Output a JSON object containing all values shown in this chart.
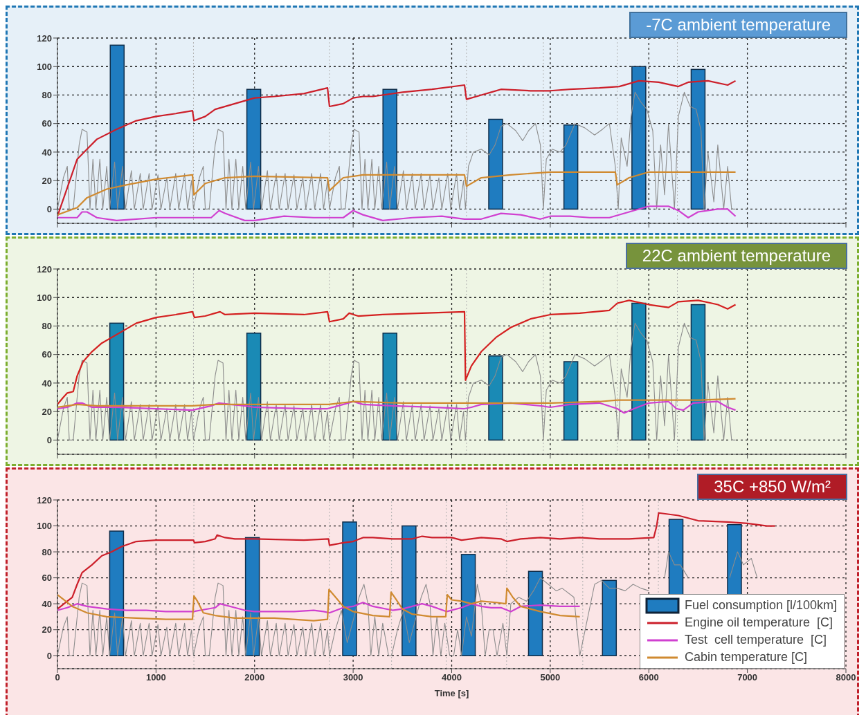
{
  "chart_data": [
    {
      "type": "bar",
      "title": "-7C ambient temperature",
      "xlim": [
        0,
        8000
      ],
      "xticks": [
        0,
        1000,
        2000,
        3000,
        4000,
        5000,
        6000,
        7000,
        8000
      ],
      "ylim": [
        -10,
        120
      ],
      "yticks": [
        0,
        20,
        40,
        60,
        80,
        100,
        120
      ],
      "grid": true,
      "tick_labels": "y",
      "ref_lines": [
        {
          "axis": "x",
          "value": 1380,
          "color": "#b0b0b0",
          "line_style": "dotted"
        },
        {
          "axis": "x",
          "value": 2760,
          "color": "#b0b0b0",
          "line_style": "dotted"
        },
        {
          "axis": "x",
          "value": 4150,
          "color": "#b0b0b0",
          "line_style": "dotted"
        },
        {
          "axis": "x",
          "value": 4930,
          "color": "#b0b0b0",
          "line_style": "dotted"
        },
        {
          "axis": "x",
          "value": 5680,
          "color": "#b0b0b0",
          "line_style": "dotted"
        },
        {
          "axis": "x",
          "value": 6290,
          "color": "#b0b0b0",
          "line_style": "dotted"
        }
      ],
      "series": [
        {
          "color": "#1f7cc0",
          "x": [
            606,
            1992,
            3373,
            4446,
            5209,
            5899,
            6500
          ],
          "values": [
            115,
            84,
            84,
            63,
            59,
            100,
            98
          ]
        },
        {
          "type": "line",
          "color": "#8c8c8c",
          "x": [
            0,
            60,
            100,
            120,
            160,
            220,
            250,
            300,
            330,
            360,
            390,
            430,
            460,
            500,
            530,
            580,
            610,
            660,
            690,
            750,
            780,
            840,
            870,
            930,
            960,
            1020,
            1050,
            1110,
            1140,
            1200,
            1230,
            1290,
            1320,
            1360,
            1380,
            1440,
            1480,
            1500,
            1540,
            1600,
            1630,
            1680,
            1710,
            1740,
            1770,
            1810,
            1840,
            1880,
            1910,
            1960,
            1990,
            2040,
            2070,
            2130,
            2160,
            2220,
            2250,
            2310,
            2340,
            2400,
            2430,
            2490,
            2520,
            2580,
            2610,
            2670,
            2700,
            2740,
            2760,
            2820,
            2860,
            2880,
            2920,
            2980,
            3010,
            3060,
            3090,
            3120,
            3150,
            3190,
            3220,
            3260,
            3290,
            3340,
            3370,
            3420,
            3450,
            3510,
            3540,
            3600,
            3630,
            3690,
            3720,
            3780,
            3810,
            3870,
            3900,
            3960,
            3990,
            4050,
            4080,
            4120,
            4140,
            4170,
            4220,
            4300,
            4380,
            4440,
            4500,
            4560,
            4650,
            4720,
            4780,
            4850,
            4900,
            4930,
            4960,
            5020,
            5100,
            5160,
            5250,
            5350,
            5450,
            5530,
            5600,
            5660,
            5690,
            5720,
            5780,
            5820,
            5860,
            5920,
            5980,
            6040,
            6080,
            6120,
            6160,
            6200,
            6260,
            6300,
            6360,
            6420,
            6480,
            6530,
            6560,
            6600,
            6660,
            6700,
            6760,
            6800,
            6840,
            6880
          ],
          "values": [
            0,
            22,
            30,
            0,
            0,
            45,
            56,
            54,
            0,
            35,
            0,
            35,
            0,
            30,
            0,
            33,
            0,
            30,
            0,
            27,
            0,
            25,
            0,
            25,
            0,
            24,
            0,
            22,
            0,
            25,
            0,
            25,
            0,
            20,
            0,
            22,
            30,
            0,
            0,
            45,
            56,
            54,
            0,
            35,
            0,
            35,
            0,
            30,
            0,
            33,
            0,
            30,
            0,
            27,
            0,
            25,
            0,
            25,
            0,
            24,
            0,
            22,
            0,
            25,
            0,
            25,
            0,
            20,
            0,
            22,
            30,
            0,
            0,
            45,
            56,
            54,
            0,
            35,
            0,
            35,
            0,
            30,
            0,
            33,
            0,
            30,
            0,
            27,
            0,
            25,
            0,
            25,
            0,
            24,
            0,
            22,
            0,
            25,
            0,
            25,
            0,
            20,
            0,
            30,
            40,
            42,
            38,
            45,
            58,
            60,
            55,
            48,
            55,
            60,
            45,
            0,
            35,
            42,
            40,
            45,
            60,
            57,
            52,
            56,
            60,
            30,
            0,
            50,
            30,
            65,
            82,
            75,
            70,
            55,
            0,
            45,
            10,
            60,
            0,
            65,
            82,
            72,
            70,
            55,
            0,
            40,
            5,
            45,
            0,
            30,
            0,
            0
          ]
        },
        {
          "type": "line",
          "color": "#cc1f2a",
          "x": [
            0,
            100,
            200,
            300,
            400,
            600,
            800,
            1000,
            1200,
            1370,
            1385,
            1500,
            1600,
            1800,
            2000,
            2200,
            2500,
            2740,
            2760,
            2900,
            3000,
            3100,
            3200,
            3500,
            3800,
            4130,
            4150,
            4300,
            4400,
            4500,
            4800,
            5000,
            5200,
            5500,
            5700,
            5900,
            6100,
            6300,
            6400,
            6600,
            6800,
            6880
          ],
          "values": [
            -5,
            15,
            35,
            42,
            49,
            56,
            62,
            65,
            67,
            69,
            62,
            65,
            70,
            74,
            78,
            79,
            81,
            85,
            72,
            74,
            78,
            79,
            79,
            82,
            84,
            87,
            77,
            80,
            82,
            84,
            83,
            83,
            84,
            85,
            86,
            90,
            89,
            86,
            89,
            90,
            87,
            90
          ]
        },
        {
          "type": "line",
          "color": "#d040d0",
          "x": [
            0,
            200,
            250,
            300,
            400,
            600,
            800,
            1000,
            1370,
            1560,
            1640,
            1700,
            1900,
            2000,
            2300,
            2600,
            2900,
            3000,
            3100,
            3300,
            3600,
            3900,
            4130,
            4300,
            4500,
            4700,
            4900,
            5000,
            5200,
            5400,
            5600,
            5800,
            6000,
            6200,
            6300,
            6400,
            6500,
            6700,
            6800,
            6880
          ],
          "values": [
            -6,
            -6,
            -2,
            -2,
            -6,
            -8,
            -7,
            -6,
            -6,
            -6,
            -1,
            -3,
            -8,
            -8,
            -5,
            -6,
            -6,
            -1,
            -4,
            -8,
            -6,
            -5,
            -7,
            -7,
            -3,
            -4,
            -7,
            -5,
            -5,
            -6,
            -6,
            -2,
            2,
            2,
            -1,
            -6,
            -2,
            0,
            0,
            -5
          ]
        },
        {
          "type": "line",
          "color": "#d08a30",
          "x": [
            0,
            200,
            300,
            500,
            700,
            1000,
            1370,
            1385,
            1500,
            1700,
            2000,
            2740,
            2760,
            2900,
            3100,
            3500,
            4130,
            4150,
            4300,
            4600,
            5000,
            5660,
            5680,
            5800,
            6000,
            6500,
            6880
          ],
          "values": [
            -4,
            1,
            8,
            14,
            17,
            21,
            24,
            10,
            18,
            22,
            23,
            22,
            13,
            22,
            24,
            24,
            24,
            16,
            22,
            24,
            26,
            26,
            17,
            22,
            26,
            26,
            26
          ]
        }
      ]
    },
    {
      "type": "bar",
      "title": "22C ambient temperature",
      "xlim": [
        0,
        8000
      ],
      "xticks": [
        0,
        1000,
        2000,
        3000,
        4000,
        5000,
        6000,
        7000,
        8000
      ],
      "ylim": [
        -10,
        120
      ],
      "yticks": [
        0,
        20,
        40,
        60,
        80,
        100,
        120
      ],
      "grid": true,
      "tick_labels": "y",
      "ref_lines": [
        {
          "axis": "x",
          "value": 1380,
          "color": "#b0b0b0",
          "line_style": "dotted"
        },
        {
          "axis": "x",
          "value": 2760,
          "color": "#b0b0b0",
          "line_style": "dotted"
        },
        {
          "axis": "x",
          "value": 4150,
          "color": "#b0b0b0",
          "line_style": "dotted"
        },
        {
          "axis": "x",
          "value": 4930,
          "color": "#b0b0b0",
          "line_style": "dotted"
        },
        {
          "axis": "x",
          "value": 5680,
          "color": "#b0b0b0",
          "line_style": "dotted"
        },
        {
          "axis": "x",
          "value": 6290,
          "color": "#b0b0b0",
          "line_style": "dotted"
        }
      ],
      "series": [
        {
          "color": "#1a8ab5",
          "x": [
            601,
            1992,
            3373,
            4446,
            5209,
            5899,
            6500
          ],
          "values": [
            82,
            75,
            75,
            59,
            55,
            96,
            95
          ]
        },
        {
          "type": "line",
          "color": "#8c8c8c",
          "x": [
            0,
            60,
            100,
            120,
            160,
            220,
            250,
            300,
            330,
            360,
            390,
            430,
            460,
            500,
            530,
            580,
            610,
            660,
            690,
            750,
            780,
            840,
            870,
            930,
            960,
            1020,
            1050,
            1110,
            1140,
            1200,
            1230,
            1290,
            1320,
            1360,
            1380,
            1440,
            1480,
            1500,
            1540,
            1600,
            1630,
            1680,
            1710,
            1740,
            1770,
            1810,
            1840,
            1880,
            1910,
            1960,
            1990,
            2040,
            2070,
            2130,
            2160,
            2220,
            2250,
            2310,
            2340,
            2400,
            2430,
            2490,
            2520,
            2580,
            2610,
            2670,
            2700,
            2740,
            2760,
            2820,
            2860,
            2880,
            2920,
            2980,
            3010,
            3060,
            3090,
            3120,
            3150,
            3190,
            3220,
            3260,
            3290,
            3340,
            3370,
            3420,
            3450,
            3510,
            3540,
            3600,
            3630,
            3690,
            3720,
            3780,
            3810,
            3870,
            3900,
            3960,
            3990,
            4050,
            4080,
            4120,
            4140,
            4170,
            4220,
            4300,
            4380,
            4440,
            4500,
            4560,
            4650,
            4720,
            4780,
            4850,
            4900,
            4930,
            4960,
            5020,
            5100,
            5160,
            5250,
            5350,
            5450,
            5530,
            5600,
            5660,
            5690,
            5720,
            5780,
            5820,
            5860,
            5920,
            5980,
            6040,
            6080,
            6120,
            6160,
            6200,
            6260,
            6300,
            6360,
            6420,
            6480,
            6530,
            6560,
            6600,
            6660,
            6700,
            6760,
            6800,
            6840,
            6880
          ],
          "values": [
            0,
            22,
            30,
            0,
            0,
            45,
            56,
            54,
            0,
            35,
            0,
            35,
            0,
            30,
            0,
            33,
            0,
            30,
            0,
            27,
            0,
            25,
            0,
            25,
            0,
            24,
            0,
            22,
            0,
            25,
            0,
            25,
            0,
            20,
            0,
            22,
            30,
            0,
            0,
            45,
            56,
            54,
            0,
            35,
            0,
            35,
            0,
            30,
            0,
            33,
            0,
            30,
            0,
            27,
            0,
            25,
            0,
            25,
            0,
            24,
            0,
            22,
            0,
            25,
            0,
            25,
            0,
            20,
            0,
            22,
            30,
            0,
            0,
            45,
            56,
            54,
            0,
            35,
            0,
            35,
            0,
            30,
            0,
            33,
            0,
            30,
            0,
            27,
            0,
            25,
            0,
            25,
            0,
            24,
            0,
            22,
            0,
            25,
            0,
            25,
            0,
            20,
            0,
            30,
            40,
            42,
            38,
            45,
            58,
            60,
            55,
            48,
            55,
            60,
            45,
            0,
            35,
            42,
            40,
            45,
            60,
            57,
            52,
            56,
            60,
            30,
            0,
            50,
            30,
            65,
            82,
            75,
            70,
            55,
            0,
            45,
            10,
            60,
            0,
            65,
            82,
            72,
            70,
            55,
            0,
            40,
            5,
            45,
            0,
            30,
            0,
            0
          ]
        },
        {
          "type": "line",
          "color": "#d42020",
          "x": [
            0,
            60,
            100,
            160,
            200,
            260,
            350,
            450,
            600,
            800,
            1000,
            1200,
            1370,
            1390,
            1500,
            1600,
            1650,
            1700,
            2000,
            2500,
            2740,
            2760,
            2900,
            2960,
            3050,
            3300,
            3700,
            4130,
            4140,
            4200,
            4300,
            4450,
            4600,
            4800,
            5000,
            5300,
            5600,
            5680,
            5800,
            6000,
            6200,
            6300,
            6500,
            6700,
            6800,
            6880
          ],
          "values": [
            25,
            30,
            33,
            34,
            45,
            55,
            62,
            68,
            74,
            82,
            86,
            88,
            90,
            86,
            87,
            89,
            90,
            88,
            89,
            88,
            90,
            83,
            85,
            89,
            87,
            88,
            89,
            90,
            42,
            52,
            62,
            72,
            79,
            85,
            88,
            89,
            91,
            96,
            98,
            95,
            93,
            97,
            98,
            95,
            92,
            95
          ]
        },
        {
          "type": "line",
          "color": "#d040d0",
          "x": [
            0,
            100,
            200,
            250,
            350,
            600,
            1000,
            1370,
            1560,
            1640,
            1750,
            1900,
            2000,
            2500,
            2740,
            2900,
            3000,
            3100,
            3400,
            3800,
            4130,
            4200,
            4300,
            4600,
            4900,
            5000,
            5200,
            5500,
            5680,
            5750,
            5850,
            6000,
            6200,
            6280,
            6350,
            6450,
            6700,
            6800,
            6880
          ],
          "values": [
            22,
            23,
            26,
            26,
            23,
            23,
            22,
            21,
            24,
            26,
            25,
            24,
            23,
            22,
            22,
            25,
            27,
            25,
            24,
            23,
            22,
            23,
            25,
            26,
            24,
            23,
            25,
            26,
            22,
            19,
            22,
            26,
            27,
            22,
            21,
            26,
            27,
            23,
            21
          ]
        },
        {
          "type": "line",
          "color": "#d08a30",
          "x": [
            0,
            200,
            400,
            1000,
            1370,
            1600,
            2000,
            2750,
            3000,
            3500,
            4130,
            4500,
            5000,
            5500,
            5680,
            6000,
            6500,
            6880
          ],
          "values": [
            23,
            25,
            24,
            24,
            24,
            25,
            25,
            25,
            27,
            26,
            26,
            26,
            26,
            27,
            28,
            28,
            28,
            29
          ]
        }
      ]
    },
    {
      "type": "bar",
      "title": "35C +850 W/m²",
      "xlabel": "Time [s]",
      "xlim": [
        0,
        8000
      ],
      "xticks": [
        0,
        1000,
        2000,
        3000,
        4000,
        5000,
        6000,
        7000,
        8000
      ],
      "ylim": [
        -10,
        120
      ],
      "yticks": [
        0,
        20,
        40,
        60,
        80,
        100,
        120
      ],
      "grid": true,
      "legend": "bottom right",
      "ref_lines": [
        {
          "axis": "x",
          "value": 1384,
          "color": "#b0b0b0",
          "line_style": "dotted"
        },
        {
          "axis": "x",
          "value": 2760,
          "color": "#b0b0b0",
          "line_style": "dotted"
        },
        {
          "axis": "x",
          "value": 3390,
          "color": "#b0b0b0",
          "line_style": "dotted"
        },
        {
          "axis": "x",
          "value": 3944,
          "color": "#b0b0b0",
          "line_style": "dotted"
        },
        {
          "axis": "x",
          "value": 4557,
          "color": "#b0b0b0",
          "line_style": "dotted"
        },
        {
          "axis": "x",
          "value": 5330,
          "color": "#b0b0b0",
          "line_style": "dotted"
        },
        {
          "axis": "x",
          "value": 6097,
          "color": "#b0b0b0",
          "line_style": "dotted"
        }
      ],
      "series": [
        {
          "name": "Fuel consumption [l/100km]",
          "color": "#1f7cc0",
          "x": [
            600,
            1978,
            2964,
            3567,
            4169,
            4850,
            5600,
            6276,
            6869
          ],
          "values": [
            96,
            91,
            103,
            100,
            78,
            65,
            58,
            105,
            101
          ]
        },
        {
          "type": "line",
          "color": "#8c8c8c",
          "x": [
            0,
            60,
            100,
            120,
            160,
            220,
            250,
            300,
            330,
            360,
            390,
            430,
            460,
            500,
            530,
            580,
            610,
            660,
            690,
            750,
            780,
            840,
            870,
            930,
            960,
            1020,
            1050,
            1110,
            1140,
            1200,
            1230,
            1290,
            1320,
            1360,
            1380,
            1440,
            1480,
            1500,
            1540,
            1600,
            1630,
            1680,
            1710,
            1740,
            1770,
            1810,
            1840,
            1880,
            1910,
            1960,
            1990,
            2040,
            2070,
            2130,
            2160,
            2220,
            2250,
            2310,
            2340,
            2400,
            2430,
            2490,
            2520,
            2580,
            2610,
            2670,
            2700,
            2740,
            2760,
            2820,
            2880,
            2940,
            3010,
            3060,
            3110,
            3150,
            3180,
            3220,
            3260,
            3300,
            3360,
            3390,
            3450,
            3510,
            3570,
            3640,
            3690,
            3740,
            3780,
            3810,
            3850,
            3890,
            3930,
            3980,
            4020,
            4060,
            4100,
            4150,
            4200,
            4260,
            4300,
            4340,
            4380,
            4420,
            4460,
            4520,
            4560,
            4600,
            4680,
            4760,
            4830,
            4900,
            4980,
            5060,
            5120,
            5240,
            5300,
            5450,
            5520,
            5600,
            5680,
            5760,
            5840,
            5920,
            6000,
            6060,
            6160,
            6200,
            6260,
            6320,
            6400,
            6440,
            6820,
            6900,
            6960,
            7040,
            7100
          ],
          "values": [
            0,
            22,
            30,
            0,
            0,
            45,
            56,
            54,
            0,
            35,
            0,
            35,
            0,
            30,
            0,
            33,
            0,
            30,
            0,
            27,
            0,
            25,
            0,
            25,
            0,
            24,
            0,
            22,
            0,
            25,
            0,
            25,
            0,
            20,
            0,
            22,
            30,
            0,
            0,
            45,
            56,
            54,
            0,
            35,
            0,
            35,
            0,
            30,
            0,
            33,
            0,
            30,
            0,
            27,
            0,
            25,
            0,
            25,
            0,
            24,
            0,
            22,
            0,
            25,
            0,
            25,
            0,
            20,
            0,
            20,
            35,
            10,
            30,
            45,
            55,
            40,
            0,
            30,
            0,
            25,
            0,
            0,
            20,
            35,
            10,
            30,
            45,
            55,
            40,
            0,
            30,
            0,
            25,
            0,
            0,
            20,
            0,
            30,
            15,
            55,
            40,
            0,
            20,
            20,
            0,
            25,
            0,
            40,
            45,
            42,
            50,
            60,
            55,
            50,
            52,
            45,
            0,
            55,
            58,
            52,
            52,
            50,
            55,
            52,
            50,
            null,
            60,
            80,
            70,
            70,
            60,
            null,
            60,
            80,
            70,
            75,
            60
          ]
        },
        {
          "type": "line",
          "name": "Engine oil temperature  [C]",
          "color": "#cc1f2a",
          "x": [
            0,
            100,
            150,
            200,
            250,
            350,
            450,
            550,
            650,
            800,
            1000,
            1200,
            1380,
            1390,
            1500,
            1600,
            1620,
            1700,
            1800,
            2000,
            2500,
            2750,
            2760,
            2900,
            3000,
            3100,
            3200,
            3400,
            3600,
            3700,
            3800,
            4000,
            4100,
            4300,
            4500,
            4560,
            4700,
            4900,
            5100,
            5300,
            5500,
            5800,
            6050,
            6080,
            6100,
            6300,
            6500,
            6800,
            7000,
            7200,
            7280
          ],
          "values": [
            36,
            42,
            45,
            55,
            64,
            70,
            77,
            80,
            84,
            88,
            89,
            89,
            89,
            87,
            88,
            90,
            93,
            91,
            90,
            90,
            89,
            90,
            85,
            87,
            88,
            91,
            91,
            90,
            90,
            92,
            91,
            91,
            89,
            91,
            90,
            88,
            90,
            91,
            90,
            91,
            90,
            90,
            91,
            100,
            110,
            108,
            104,
            103,
            102,
            100,
            100
          ]
        },
        {
          "type": "line",
          "name": "Test  cell temperature  [C]",
          "color": "#d040d0",
          "x": [
            0,
            100,
            200,
            300,
            500,
            700,
            900,
            1100,
            1300,
            1380,
            1450,
            1600,
            1650,
            1800,
            1900,
            2000,
            2200,
            2400,
            2600,
            2700,
            2760,
            2900,
            3000,
            3100,
            3200,
            3400,
            3500,
            3600,
            3700,
            3800,
            3950,
            4100,
            4200,
            4300,
            4400,
            4500,
            4600,
            4700,
            4900,
            5100,
            5300
          ],
          "values": [
            35,
            37,
            40,
            38,
            36,
            35,
            35,
            34,
            34,
            34,
            35,
            37,
            40,
            37,
            35,
            34,
            34,
            34,
            35,
            34,
            33,
            37,
            38,
            41,
            38,
            35,
            36,
            38,
            40,
            38,
            34,
            37,
            40,
            38,
            37,
            37,
            34,
            38,
            39,
            38,
            38
          ]
        },
        {
          "type": "line",
          "name": "Cabin temperature [C]",
          "color": "#d08a30",
          "x": [
            0,
            50,
            150,
            300,
            500,
            800,
            1100,
            1370,
            1385,
            1420,
            1480,
            1600,
            1800,
            2200,
            2600,
            2740,
            2755,
            2800,
            2900,
            3000,
            3200,
            3370,
            3385,
            3430,
            3500,
            3600,
            3800,
            3940,
            3955,
            4000,
            4100,
            4200,
            4300,
            4450,
            4550,
            4560,
            4620,
            4700,
            4900,
            5100,
            5300
          ],
          "values": [
            47,
            44,
            38,
            33,
            30,
            29,
            28,
            28,
            46,
            42,
            33,
            31,
            29,
            29,
            27,
            28,
            51,
            47,
            38,
            34,
            31,
            30,
            49,
            44,
            36,
            32,
            30,
            30,
            47,
            43,
            42,
            40,
            42,
            41,
            40,
            52,
            45,
            38,
            34,
            31,
            30
          ]
        }
      ]
    }
  ]
}
